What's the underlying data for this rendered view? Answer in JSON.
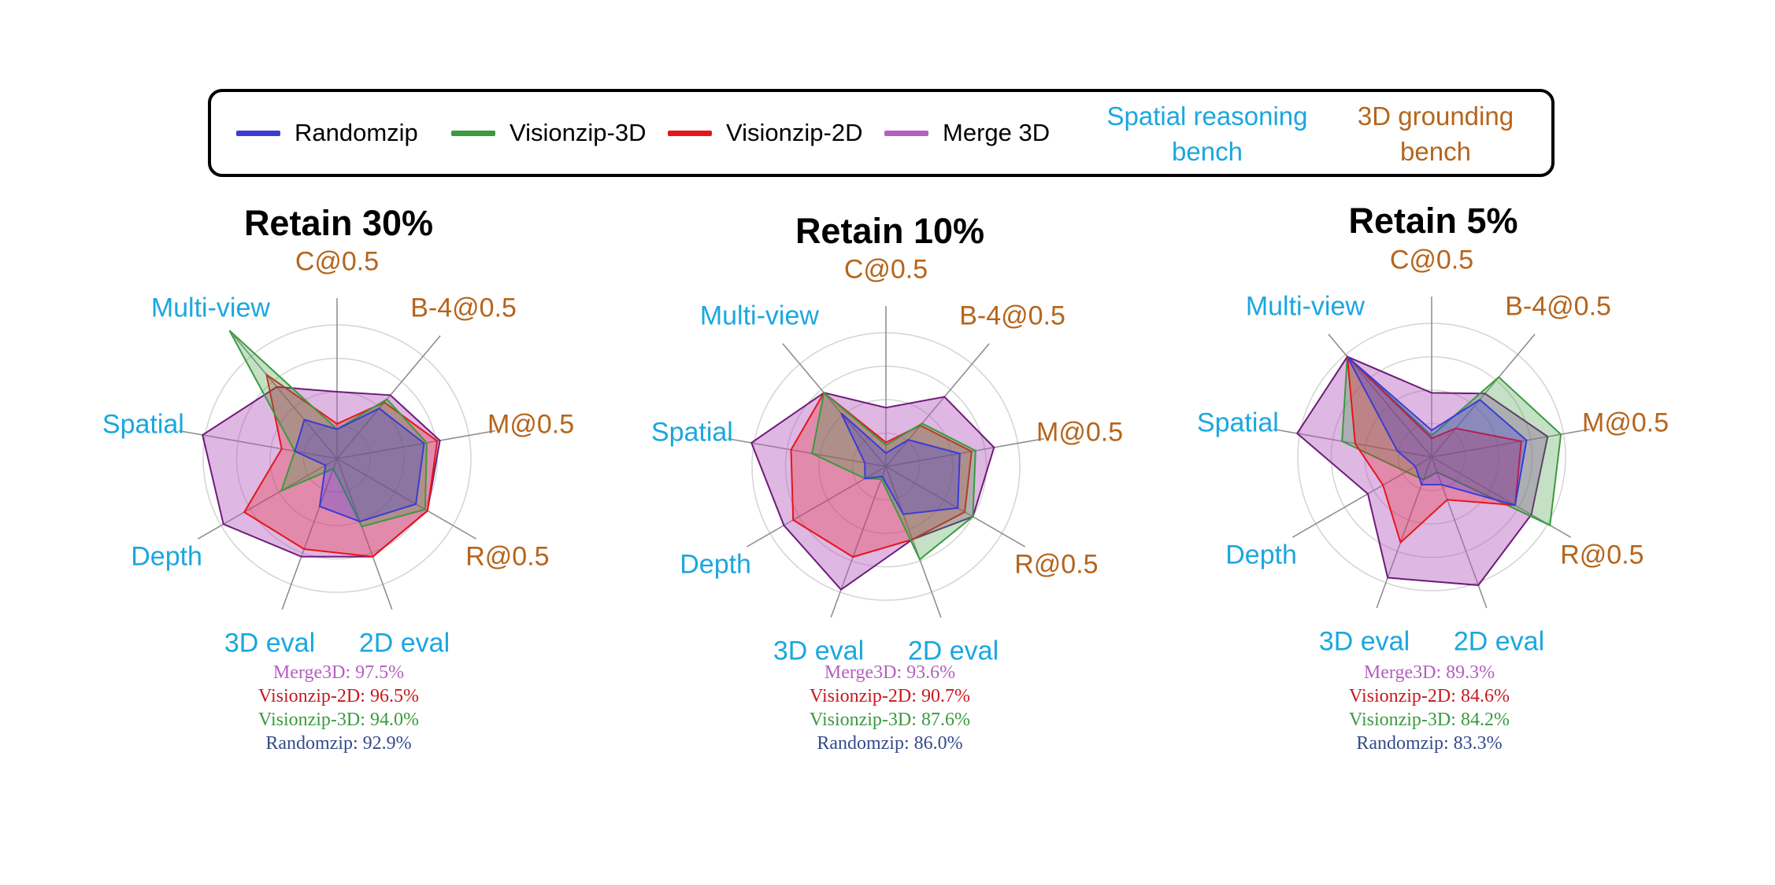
{
  "legend": {
    "items": [
      {
        "label": "Randomzip",
        "color": "#3b3bd6"
      },
      {
        "label": "Visionzip-3D",
        "color": "#3a9a3e"
      },
      {
        "label": "Visionzip-2D",
        "color": "#e8141a"
      },
      {
        "label": "Merge 3D",
        "color": "#b55fc0"
      }
    ],
    "spatial_bench": "Spatial reasoning bench",
    "grounding_bench": "3D grounding bench",
    "spatial_color": "#1aa7df",
    "grounding_color": "#b5651d"
  },
  "chart_data": [
    {
      "type": "radar",
      "title": "Retain 30%",
      "axes": [
        "C@0.5",
        "B-4@0.5",
        "M@0.5",
        "R@0.5",
        "2D eval",
        "3D eval",
        "Depth",
        "Spatial",
        "Multi-view"
      ],
      "axis_groups": [
        "grounding",
        "grounding",
        "grounding",
        "grounding",
        "spatial",
        "spatial",
        "spatial",
        "spatial",
        "spatial"
      ],
      "series": [
        {
          "name": "Merge 3D",
          "values": [
            0.5,
            0.62,
            0.78,
            0.78,
            0.78,
            0.78,
            0.98,
            1.02,
            0.7
          ]
        },
        {
          "name": "Visionzip-2D",
          "values": [
            0.26,
            0.55,
            0.76,
            0.78,
            0.78,
            0.72,
            0.8,
            0.42,
            0.82
          ]
        },
        {
          "name": "Visionzip-3D",
          "values": [
            0.22,
            0.58,
            0.68,
            0.76,
            0.54,
            0.08,
            0.48,
            0.32,
            1.25
          ]
        },
        {
          "name": "Randomzip",
          "values": [
            0.22,
            0.49,
            0.66,
            0.68,
            0.5,
            0.38,
            0.1,
            0.32,
            0.38
          ]
        }
      ],
      "scores": [
        {
          "name": "Merge3D",
          "value": "97.5%"
        },
        {
          "name": "Visionzip-2D",
          "value": "96.5%"
        },
        {
          "name": "Visionzip-3D",
          "value": "94.0%"
        },
        {
          "name": "Randomzip",
          "value": "92.9%"
        }
      ]
    },
    {
      "type": "radar",
      "title": "Retain 10%",
      "axes": [
        "C@0.5",
        "B-4@0.5",
        "M@0.5",
        "R@0.5",
        "2D eval",
        "3D eval",
        "Depth",
        "Spatial",
        "Multi-view"
      ],
      "axis_groups": [
        "grounding",
        "grounding",
        "grounding",
        "grounding",
        "spatial",
        "spatial",
        "spatial",
        "spatial",
        "spatial"
      ],
      "series": [
        {
          "name": "Merge 3D",
          "values": [
            0.44,
            0.68,
            0.82,
            0.75,
            0.58,
            0.98,
            0.88,
            1.02,
            0.72
          ]
        },
        {
          "name": "Visionzip-2D",
          "values": [
            0.18,
            0.4,
            0.65,
            0.68,
            0.58,
            0.72,
            0.8,
            0.72,
            0.72
          ]
        },
        {
          "name": "Visionzip-3D",
          "values": [
            0.16,
            0.42,
            0.68,
            0.75,
            0.74,
            0.1,
            0.18,
            0.56,
            0.72
          ]
        },
        {
          "name": "Randomzip",
          "values": [
            0.1,
            0.26,
            0.56,
            0.62,
            0.38,
            0.08,
            0.18,
            0.16,
            0.52
          ]
        }
      ],
      "scores": [
        {
          "name": "Merge3D",
          "value": "93.6%"
        },
        {
          "name": "Visionzip-2D",
          "value": "90.7%"
        },
        {
          "name": "Visionzip-3D",
          "value": "87.6%"
        },
        {
          "name": "Randomzip",
          "value": "86.0%"
        }
      ]
    },
    {
      "type": "radar",
      "title": "Retain 5%",
      "axes": [
        "C@0.5",
        "B-4@0.5",
        "M@0.5",
        "R@0.5",
        "2D eval",
        "3D eval",
        "Depth",
        "Spatial",
        "Multi-view"
      ],
      "axis_groups": [
        "grounding",
        "grounding",
        "grounding",
        "grounding",
        "spatial",
        "spatial",
        "spatial",
        "spatial",
        "spatial"
      ],
      "series": [
        {
          "name": "Merge 3D",
          "values": [
            0.48,
            0.62,
            0.88,
            0.86,
            1.02,
            0.96,
            0.55,
            1.02,
            0.98
          ]
        },
        {
          "name": "Visionzip-3D",
          "values": [
            0.16,
            0.78,
            0.98,
            1.02,
            0.12,
            0.18,
            0.22,
            0.68,
            0.98
          ]
        },
        {
          "name": "Visionzip-2D",
          "values": [
            0.14,
            0.28,
            0.68,
            0.72,
            0.34,
            0.68,
            0.42,
            0.58,
            0.98
          ]
        },
        {
          "name": "Randomzip",
          "values": [
            0.2,
            0.56,
            0.72,
            0.72,
            0.22,
            0.22,
            0.14,
            0.26,
            0.98
          ]
        }
      ],
      "scores": [
        {
          "name": "Merge3D",
          "value": "89.3%"
        },
        {
          "name": "Visionzip-2D",
          "value": "84.6%"
        },
        {
          "name": "Visionzip-3D",
          "value": "84.2%"
        },
        {
          "name": "Randomzip",
          "value": "83.3%"
        }
      ]
    }
  ],
  "score_colors": {
    "Merge3D": "#b55fc0",
    "Visionzip-2D": "#c8181c",
    "Visionzip-3D": "#3a9a3e",
    "Randomzip": "#344a8c"
  }
}
